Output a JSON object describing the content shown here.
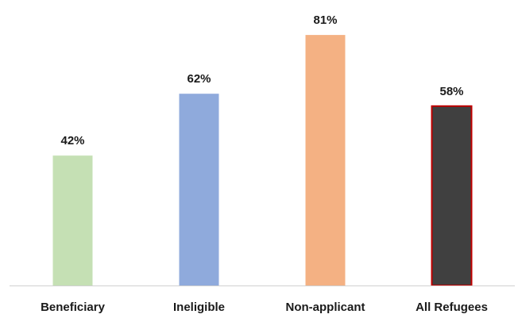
{
  "chart_data": {
    "type": "bar",
    "title": "",
    "xlabel": "",
    "ylabel": "",
    "categories": [
      "Beneficiary",
      "Ineligible",
      "Non-applicant",
      "All Refugees"
    ],
    "values": [
      42,
      62,
      81,
      58
    ],
    "data_labels": [
      "42%",
      "62%",
      "81%",
      "58%"
    ],
    "unit": "%",
    "ylim": [
      0,
      100
    ],
    "grid": false,
    "legend": "none",
    "colors": [
      "#c5e0b4",
      "#8faadc",
      "#f4b183",
      "#404040"
    ],
    "highlight_outline": {
      "category": "All Refugees",
      "color": "#c00000"
    },
    "axis_color": "#d0d0d0"
  }
}
